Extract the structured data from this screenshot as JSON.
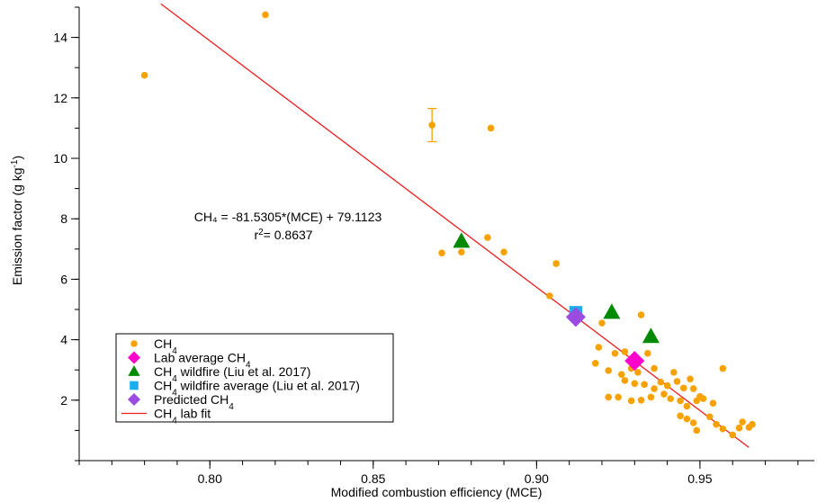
{
  "chart_data": {
    "type": "scatter",
    "xlabel": "Modified combustion efficiency (MCE)",
    "ylabel_main": "Emission factor (g kg",
    "ylabel_sup": "-1",
    "ylabel_end": ")",
    "xlim": [
      0.76,
      0.985
    ],
    "ylim": [
      0,
      15
    ],
    "x_ticks": [
      0.8,
      0.85,
      0.9,
      0.95
    ],
    "x_tick_labels": [
      "0.80",
      "0.85",
      "0.90",
      "0.95"
    ],
    "x_minor_step": 0.01,
    "y_ticks": [
      2,
      4,
      6,
      8,
      10,
      12,
      14
    ],
    "y_tick_labels": [
      "2",
      "4",
      "6",
      "8",
      "10",
      "12",
      "14"
    ],
    "y_minor_step": 1,
    "grid": false,
    "annotation": {
      "equation": "CH₄ = -81.5305*(MCE) + 79.1123",
      "r2_prefix": "r",
      "r2_sup": "2",
      "r2_value": "= 0.8637"
    },
    "series": [
      {
        "name": "CH4",
        "marker": "circle",
        "color": "#F7A200",
        "points": [
          [
            0.78,
            12.75
          ],
          [
            0.817,
            14.75
          ],
          [
            0.868,
            11.1
          ],
          [
            0.886,
            11.0
          ],
          [
            0.871,
            6.87
          ],
          [
            0.877,
            6.9
          ],
          [
            0.885,
            7.38
          ],
          [
            0.89,
            6.9
          ],
          [
            0.906,
            6.52
          ],
          [
            0.904,
            5.45
          ],
          [
            0.92,
            4.55
          ],
          [
            0.932,
            4.82
          ],
          [
            0.919,
            3.75
          ],
          [
            0.924,
            3.55
          ],
          [
            0.927,
            3.6
          ],
          [
            0.934,
            3.55
          ],
          [
            0.918,
            3.22
          ],
          [
            0.922,
            2.98
          ],
          [
            0.926,
            2.85
          ],
          [
            0.929,
            3.05
          ],
          [
            0.931,
            2.92
          ],
          [
            0.927,
            2.65
          ],
          [
            0.93,
            2.55
          ],
          [
            0.933,
            2.52
          ],
          [
            0.936,
            3.05
          ],
          [
            0.938,
            2.6
          ],
          [
            0.94,
            2.48
          ],
          [
            0.942,
            2.92
          ],
          [
            0.943,
            2.62
          ],
          [
            0.945,
            2.4
          ],
          [
            0.947,
            2.7
          ],
          [
            0.948,
            2.38
          ],
          [
            0.936,
            2.38
          ],
          [
            0.939,
            2.2
          ],
          [
            0.941,
            2.05
          ],
          [
            0.944,
            1.98
          ],
          [
            0.946,
            1.8
          ],
          [
            0.949,
            1.98
          ],
          [
            0.95,
            2.12
          ],
          [
            0.951,
            2.05
          ],
          [
            0.954,
            1.9
          ],
          [
            0.957,
            3.05
          ],
          [
            0.922,
            2.1
          ],
          [
            0.925,
            2.1
          ],
          [
            0.929,
            1.98
          ],
          [
            0.932,
            2.0
          ],
          [
            0.935,
            2.1
          ],
          [
            0.944,
            1.48
          ],
          [
            0.946,
            1.38
          ],
          [
            0.948,
            1.25
          ],
          [
            0.949,
            1.0
          ],
          [
            0.953,
            1.45
          ],
          [
            0.955,
            1.2
          ],
          [
            0.957,
            1.05
          ],
          [
            0.96,
            0.85
          ],
          [
            0.962,
            1.08
          ],
          [
            0.963,
            1.28
          ],
          [
            0.965,
            1.1
          ],
          [
            0.966,
            1.2
          ]
        ],
        "error_bar": {
          "x": 0.868,
          "y": 11.1,
          "low": 10.55,
          "high": 11.65
        }
      },
      {
        "name": "Lab average CH4",
        "marker": "diamond",
        "color": "#FF00CC",
        "points": [
          [
            0.93,
            3.3
          ]
        ]
      },
      {
        "name": "CH4 wildfire (Liu et al. 2017)",
        "marker": "triangle",
        "color": "#008A00",
        "points": [
          [
            0.877,
            7.25
          ],
          [
            0.923,
            4.9
          ],
          [
            0.935,
            4.1
          ]
        ]
      },
      {
        "name": "CH4 wildfire average (Liu et al. 2017)",
        "marker": "square",
        "color": "#1AAEEF",
        "points": [
          [
            0.912,
            4.9
          ]
        ]
      },
      {
        "name": "Predicted CH4",
        "marker": "diamond",
        "color": "#9B4BE0",
        "points": [
          [
            0.912,
            4.75
          ]
        ]
      },
      {
        "name": "CH4 lab fit",
        "marker": "line",
        "color": "#EE1C1C",
        "slope": -81.5305,
        "intercept": 79.1123,
        "x_range": [
          0.785,
          0.965
        ]
      }
    ],
    "legend": {
      "placement": "bottom-left",
      "items": [
        {
          "marker": "circle",
          "color": "#F7A200",
          "parts": [
            "CH",
            "4",
            ""
          ]
        },
        {
          "marker": "diamond",
          "color": "#FF00CC",
          "parts": [
            "Lab average CH",
            "4",
            ""
          ]
        },
        {
          "marker": "triangle",
          "color": "#008A00",
          "parts": [
            "CH",
            "4",
            " wildfire (Liu et al. 2017)"
          ]
        },
        {
          "marker": "square",
          "color": "#1AAEEF",
          "parts": [
            "CH",
            "4",
            " wildfire average (Liu et al. 2017)"
          ]
        },
        {
          "marker": "diamond",
          "color": "#9B4BE0",
          "parts": [
            "Predicted CH",
            "4",
            ""
          ]
        },
        {
          "marker": "line",
          "color": "#EE1C1C",
          "parts": [
            "CH",
            "4",
            " lab fit"
          ]
        }
      ]
    }
  }
}
